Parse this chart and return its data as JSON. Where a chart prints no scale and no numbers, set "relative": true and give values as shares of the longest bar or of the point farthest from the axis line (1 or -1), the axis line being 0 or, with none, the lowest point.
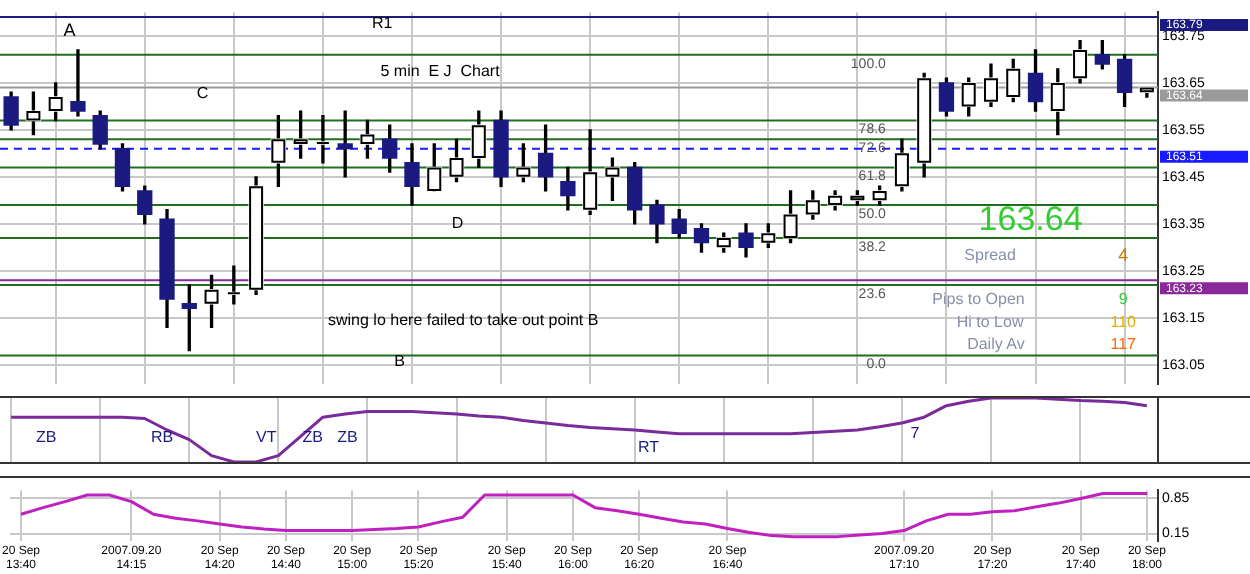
{
  "chart_data": [
    {
      "type": "candlestick",
      "categories": [
        null,
        null,
        null,
        null,
        null,
        null,
        null,
        null,
        null,
        null,
        null,
        null,
        null,
        null,
        null,
        null,
        null,
        null,
        null,
        null,
        null,
        null,
        null,
        null,
        null,
        null,
        null,
        null,
        null,
        null,
        null,
        null,
        null,
        null,
        null,
        null,
        null,
        null,
        null,
        null,
        null,
        null,
        null,
        null,
        null,
        null,
        null,
        null,
        null,
        null,
        null,
        null
      ],
      "ohlc": [
        [
          163.62,
          163.63,
          163.55,
          163.56
        ],
        [
          163.57,
          163.63,
          163.54,
          163.59
        ],
        [
          163.59,
          163.65,
          163.57,
          163.62
        ],
        [
          163.61,
          163.72,
          163.58,
          163.59
        ],
        [
          163.58,
          163.59,
          163.51,
          163.52
        ],
        [
          163.51,
          163.52,
          163.42,
          163.43
        ],
        [
          163.42,
          163.43,
          163.35,
          163.37
        ],
        [
          163.36,
          163.38,
          163.13,
          163.19
        ],
        [
          163.18,
          163.22,
          163.08,
          163.17
        ],
        [
          163.18,
          163.24,
          163.13,
          163.21
        ],
        [
          163.2,
          163.26,
          163.18,
          163.2
        ],
        [
          163.21,
          163.45,
          163.2,
          163.43
        ],
        [
          163.48,
          163.58,
          163.43,
          163.53
        ],
        [
          163.52,
          163.59,
          163.49,
          163.53
        ],
        [
          163.52,
          163.58,
          163.48,
          163.52
        ],
        [
          163.52,
          163.59,
          163.45,
          163.51
        ],
        [
          163.52,
          163.57,
          163.49,
          163.54
        ],
        [
          163.53,
          163.56,
          163.46,
          163.49
        ],
        [
          163.48,
          163.52,
          163.39,
          163.43
        ],
        [
          163.42,
          163.52,
          163.42,
          163.47
        ],
        [
          163.45,
          163.53,
          163.44,
          163.49
        ],
        [
          163.49,
          163.59,
          163.47,
          163.56
        ],
        [
          163.57,
          163.59,
          163.43,
          163.45
        ],
        [
          163.45,
          163.52,
          163.44,
          163.47
        ],
        [
          163.5,
          163.56,
          163.42,
          163.45
        ],
        [
          163.44,
          163.47,
          163.38,
          163.41
        ],
        [
          163.38,
          163.55,
          163.37,
          163.46
        ],
        [
          163.45,
          163.49,
          163.4,
          163.47
        ],
        [
          163.47,
          163.48,
          163.35,
          163.38
        ],
        [
          163.39,
          163.4,
          163.31,
          163.35
        ],
        [
          163.36,
          163.38,
          163.32,
          163.33
        ],
        [
          163.34,
          163.35,
          163.29,
          163.31
        ],
        [
          163.3,
          163.33,
          163.29,
          163.32
        ],
        [
          163.33,
          163.35,
          163.28,
          163.3
        ],
        [
          163.31,
          163.35,
          163.3,
          163.33
        ],
        [
          163.32,
          163.42,
          163.31,
          163.37
        ],
        [
          163.37,
          163.42,
          163.36,
          163.4
        ],
        [
          163.39,
          163.42,
          163.38,
          163.41
        ],
        [
          163.4,
          163.42,
          163.39,
          163.41
        ],
        [
          163.4,
          163.43,
          163.39,
          163.42
        ],
        [
          163.43,
          163.53,
          163.42,
          163.5
        ],
        [
          163.48,
          163.67,
          163.45,
          163.66
        ],
        [
          163.65,
          163.66,
          163.58,
          163.59
        ],
        [
          163.6,
          163.66,
          163.58,
          163.65
        ],
        [
          163.61,
          163.69,
          163.6,
          163.66
        ],
        [
          163.62,
          163.7,
          163.61,
          163.68
        ],
        [
          163.67,
          163.72,
          163.59,
          163.61
        ],
        [
          163.59,
          163.68,
          163.54,
          163.65
        ],
        [
          163.66,
          163.74,
          163.65,
          163.72
        ],
        [
          163.71,
          163.74,
          163.68,
          163.69
        ],
        [
          163.7,
          163.71,
          163.6,
          163.63
        ],
        [
          163.63,
          163.64,
          163.62,
          163.64
        ]
      ],
      "colors": [
        "#1a1a80",
        "#ffffff",
        "#ffffff",
        "#1a1a80",
        "#1a1a80",
        "#1a1a80",
        "#1a1a80",
        "#1a1a80",
        "#1a1a80",
        "#ffffff",
        "#ffffff",
        "#ffffff",
        "#ffffff",
        "#ffffff",
        "#ffffff",
        "#1a1a80",
        "#ffffff",
        "#1a1a80",
        "#1a1a80",
        "#ffffff",
        "#ffffff",
        "#ffffff",
        "#1a1a80",
        "#ffffff",
        "#1a1a80",
        "#1a1a80",
        "#ffffff",
        "#ffffff",
        "#1a1a80",
        "#1a1a80",
        "#1a1a80",
        "#1a1a80",
        "#ffffff",
        "#1a1a80",
        "#ffffff",
        "#ffffff",
        "#ffffff",
        "#ffffff",
        "#ffffff",
        "#ffffff",
        "#ffffff",
        "#ffffff",
        "#1a1a80",
        "#ffffff",
        "#ffffff",
        "#ffffff",
        "#1a1a80",
        "#ffffff",
        "#ffffff",
        "#1a1a80",
        "#1a1a80",
        "#ffffff"
      ],
      "ylim": [
        163.01,
        163.8
      ],
      "yticks": [
        163.05,
        163.15,
        163.25,
        163.35,
        163.45,
        163.55,
        163.65,
        163.75
      ],
      "grid": true,
      "tick_labels": "y",
      "legend": false,
      "ref_lines": [
        {
          "axis": "y",
          "value": 163.71,
          "color": "#1f6f1f"
        },
        {
          "axis": "y",
          "value": 163.57,
          "color": "#1f6f1f"
        },
        {
          "axis": "y",
          "value": 163.53,
          "color": "#1f6f1f"
        },
        {
          "axis": "y",
          "value": 163.47,
          "color": "#1f6f1f"
        },
        {
          "axis": "y",
          "value": 163.39,
          "color": "#1f6f1f"
        },
        {
          "axis": "y",
          "value": 163.32,
          "color": "#1f6f1f"
        },
        {
          "axis": "y",
          "value": 163.22,
          "color": "#1f6f1f"
        },
        {
          "axis": "y",
          "value": 163.07,
          "color": "#1f6f1f"
        },
        {
          "axis": "y",
          "value": 163.79,
          "label": "163.79",
          "color": "#1a1a80"
        },
        {
          "axis": "y",
          "value": 163.64,
          "label": "163.64",
          "color": "#9a9a9a"
        },
        {
          "axis": "y",
          "value": 163.51,
          "label": "163.51",
          "color": "#1a1aff",
          "line_style": "dashed"
        },
        {
          "axis": "y",
          "value": 163.23,
          "label": "163.23",
          "color": "#8a2a9a"
        }
      ],
      "annotations": [
        "A",
        "B",
        "C",
        "D",
        "R1",
        "5 min  E J  Chart",
        "swing lo here failed to take out point B",
        "163.64",
        "Spread",
        "4",
        "Pips to Open",
        "9",
        "Hi to Low",
        "110",
        "Daily Av",
        "117",
        {
          "text": "100.0",
          "y": 163.71
        },
        {
          "text": "78.6",
          "y": 163.57
        },
        {
          "text": "72.6",
          "y": 163.53
        },
        {
          "text": "61.8",
          "y": 163.47
        },
        {
          "text": "50.0",
          "y": 163.39
        },
        {
          "text": "38.2",
          "y": 163.32
        },
        {
          "text": "23.6",
          "y": 163.22
        },
        {
          "text": "0.0",
          "y": 163.07
        }
      ]
    },
    {
      "type": "line",
      "relative": true,
      "tick_labels": false,
      "legend": false,
      "grid": "x",
      "categories": [
        null,
        null,
        null,
        null,
        null,
        null,
        null,
        null,
        null,
        null,
        null,
        null,
        null,
        null,
        null,
        null,
        null,
        null,
        null,
        null,
        null,
        null,
        null,
        null,
        null,
        null,
        null,
        null,
        null,
        null,
        null,
        null,
        null,
        null,
        null,
        null,
        null,
        null,
        null,
        null,
        null,
        null,
        null,
        null,
        null,
        null,
        null,
        null,
        null,
        null,
        null,
        null
      ],
      "series": [
        {
          "color": "#7a2a9a",
          "values": [
            0.7,
            0.7,
            0.7,
            0.7,
            0.7,
            0.7,
            0.68,
            0.5,
            0.35,
            0.1,
            0,
            0,
            0.1,
            0.4,
            0.7,
            0.75,
            0.79,
            0.79,
            0.79,
            0.77,
            0.75,
            0.72,
            0.7,
            0.65,
            0.61,
            0.57,
            0.54,
            0.52,
            0.5,
            0.47,
            0.44,
            0.44,
            0.44,
            0.44,
            0.44,
            0.44,
            0.46,
            0.48,
            0.5,
            0.55,
            0.61,
            0.7,
            0.88,
            0.95,
            1,
            1,
            1,
            0.98,
            0.96,
            0.95,
            0.93,
            0.88
          ]
        }
      ],
      "annotations": [
        "ZB",
        "RB",
        "VT",
        "ZB",
        "ZB",
        "RT",
        "7"
      ]
    },
    {
      "type": "line",
      "legend": false,
      "grid": true,
      "categories": [
        "20 Sep 13:40",
        null,
        null,
        null,
        null,
        "2007.09.20 14:15",
        null,
        null,
        null,
        "20 Sep 14:20",
        null,
        null,
        "20 Sep 14:40",
        null,
        null,
        "20 Sep 15:00",
        null,
        null,
        "20 Sep 15:20",
        null,
        null,
        null,
        "20 Sep 15:40",
        null,
        null,
        "20 Sep 16:00",
        null,
        null,
        "20 Sep 16:20",
        null,
        null,
        null,
        "20 Sep 16:40",
        null,
        null,
        null,
        null,
        null,
        null,
        null,
        "2007.09.20 17:10",
        null,
        null,
        null,
        "20 Sep 17:20",
        null,
        null,
        null,
        "20 Sep 17:40",
        null,
        null,
        "20 Sep 18:00"
      ],
      "series": [
        {
          "color": "#c020c0",
          "values": [
            0.53,
            0.66,
            0.78,
            0.91,
            0.91,
            0.78,
            0.53,
            0.45,
            0.4,
            0.34,
            0.28,
            0.24,
            0.21,
            0.21,
            0.21,
            0.21,
            0.23,
            0.25,
            0.28,
            0.38,
            0.47,
            0.91,
            0.91,
            0.91,
            0.91,
            0.91,
            0.66,
            0.6,
            0.53,
            0.45,
            0.38,
            0.34,
            0.25,
            0.17,
            0.11,
            0.09,
            0.09,
            0.09,
            0.12,
            0.15,
            0.21,
            0.4,
            0.53,
            0.53,
            0.58,
            0.6,
            0.68,
            0.75,
            0.84,
            0.94,
            0.94,
            0.94
          ]
        }
      ],
      "ylim": [
        0,
        1
      ],
      "yticks": [
        0.15,
        0.85
      ]
    }
  ]
}
